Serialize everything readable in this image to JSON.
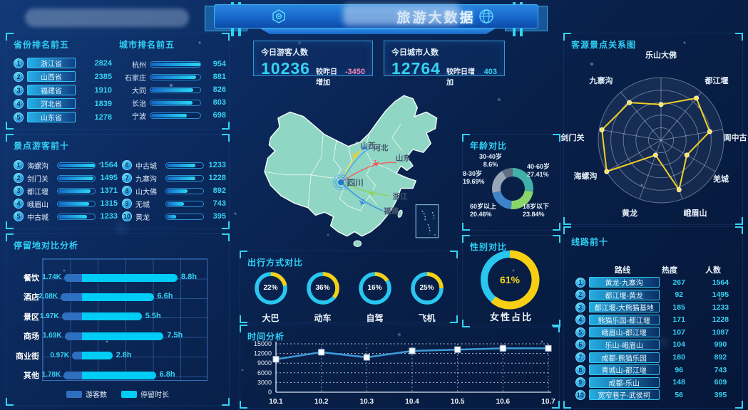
{
  "header": {
    "title": "旅游大数据"
  },
  "colors": {
    "accent": "#35d3f2",
    "bar_blue": "#2f6fc0",
    "bar_cyan": "#00cdf6",
    "ring_cyan": "#29c6f0",
    "ring_yellow": "#f7cf13",
    "line": "#3f9bd8",
    "radar": "#f2d024",
    "delta_down": "#ff86c2",
    "delta_up": "#35d3f2",
    "map_fill": "#8fd6c4"
  },
  "cards": [
    {
      "label": "今日游客人数",
      "value": "10236",
      "delta_label": "较昨日增加",
      "delta": "-3450",
      "delta_color": "#ff86c2"
    },
    {
      "label": "今日城市人数",
      "value": "12764",
      "delta_label": "较昨日增加",
      "delta": "403",
      "delta_color": "#35d3f2"
    }
  ],
  "map": {
    "center_label": "四川",
    "plane_glyph": "✈",
    "destinations": [
      {
        "name": "山西",
        "color": "#ffce1f"
      },
      {
        "name": "河北",
        "color": "#3aa0ff"
      },
      {
        "name": "山东",
        "color": "#ff5050"
      },
      {
        "name": "浙江",
        "color": "#8bd346"
      },
      {
        "name": "福建",
        "color": "#2f86e0"
      }
    ]
  },
  "chart_data": [
    {
      "id": "province_rank",
      "type": "bar",
      "title": "省份排名前五",
      "categories": [
        "浙江省",
        "山西省",
        "福建省",
        "河北省",
        "山东省"
      ],
      "values": [
        2824,
        2385,
        1910,
        1839,
        1278
      ]
    },
    {
      "id": "city_rank",
      "type": "bar",
      "title": "城市排名前五",
      "categories": [
        "杭州",
        "石家庄",
        "大同",
        "长治",
        "宁波"
      ],
      "values": [
        954,
        881,
        826,
        803,
        698
      ]
    },
    {
      "id": "spot_rank",
      "type": "bar",
      "title": "景点游客前十",
      "categories": [
        "海螺沟",
        "剑门关",
        "都江堰",
        "峨眉山",
        "中古城",
        "中古城",
        "九寨沟",
        "山大佛",
        "无城",
        "黄龙"
      ],
      "values": [
        1564,
        1495,
        1371,
        1315,
        1233,
        1233,
        1228,
        892,
        743,
        395
      ]
    },
    {
      "id": "stay",
      "type": "bar",
      "title": "停留地对比分析",
      "categories": [
        "餐饮",
        "酒店",
        "景区",
        "商场",
        "商业街",
        "其他"
      ],
      "series": [
        {
          "name": "游客数",
          "values": [
            "1.74K",
            "2.08K",
            "1.97K",
            "1.69K",
            "0.97K",
            "1.78K"
          ]
        },
        {
          "name": "停留时长",
          "values": [
            "8.8h",
            "6.6h",
            "5.5h",
            "7.5h",
            "2.8h",
            "6.8h"
          ]
        }
      ]
    },
    {
      "id": "age",
      "type": "pie",
      "title": "年龄对比",
      "slices": [
        {
          "label": "40-60岁",
          "pct": 27.41,
          "color": "#41b0a8"
        },
        {
          "label": "18岁以下",
          "pct": 23.84,
          "color": "#8ad56a"
        },
        {
          "label": "60岁以上",
          "pct": 20.46,
          "color": "#3f83c8"
        },
        {
          "label": "8-30岁",
          "pct": 19.69,
          "color": "#97a7b8"
        },
        {
          "label": "30-40岁",
          "pct": 8.6,
          "color": "#5d6f82"
        }
      ]
    },
    {
      "id": "travel",
      "type": "pie",
      "title": "出行方式对比",
      "items": [
        {
          "label": "大巴",
          "pct": 22
        },
        {
          "label": "动车",
          "pct": 36
        },
        {
          "label": "自驾",
          "pct": 16
        },
        {
          "label": "飞机",
          "pct": 25
        }
      ]
    },
    {
      "id": "gender",
      "type": "pie",
      "title": "性别对比",
      "pct": 61,
      "center_text": "61%",
      "caption": "女性占比"
    },
    {
      "id": "time",
      "type": "line",
      "title": "时间分析",
      "x": [
        "10.1",
        "10.2",
        "10.3",
        "10.4",
        "10.5",
        "10.6",
        "10.7"
      ],
      "values": [
        10200,
        12400,
        10800,
        12800,
        13200,
        13600,
        13600
      ],
      "yticks": [
        0,
        3000,
        6000,
        9000,
        12000,
        15000
      ],
      "ylim": [
        0,
        15000
      ]
    },
    {
      "id": "radar",
      "type": "radar",
      "title": "客源景点关系图",
      "axes": [
        "乐山大佛",
        "都江堰",
        "阆中古",
        "羌城",
        "峨眉山",
        "黄龙",
        "海螺沟",
        "剑门关",
        "九寨沟"
      ],
      "values": [
        892,
        1371,
        1233,
        743,
        1315,
        395,
        1564,
        1495,
        1228
      ],
      "max": 1564
    },
    {
      "id": "routes",
      "type": "table",
      "title": "线路前十",
      "columns": [
        "路线",
        "热度",
        "人数"
      ],
      "rows": [
        [
          "黄龙-九寨沟",
          267,
          1564
        ],
        [
          "都江堰-黄龙",
          92,
          1495
        ],
        [
          "都江堰-大熊猫基地",
          185,
          1233
        ],
        [
          "熊猫乐园-都江堰",
          171,
          1228
        ],
        [
          "峨眉山-都江堰",
          107,
          1087
        ],
        [
          "乐山-峨眉山",
          104,
          990
        ],
        [
          "成都-熊猫乐园",
          180,
          892
        ],
        [
          "青城山-都江堰",
          96,
          743
        ],
        [
          "成都-乐山",
          148,
          609
        ],
        [
          "宽窄巷子-武侯祠",
          56,
          395
        ]
      ]
    }
  ]
}
